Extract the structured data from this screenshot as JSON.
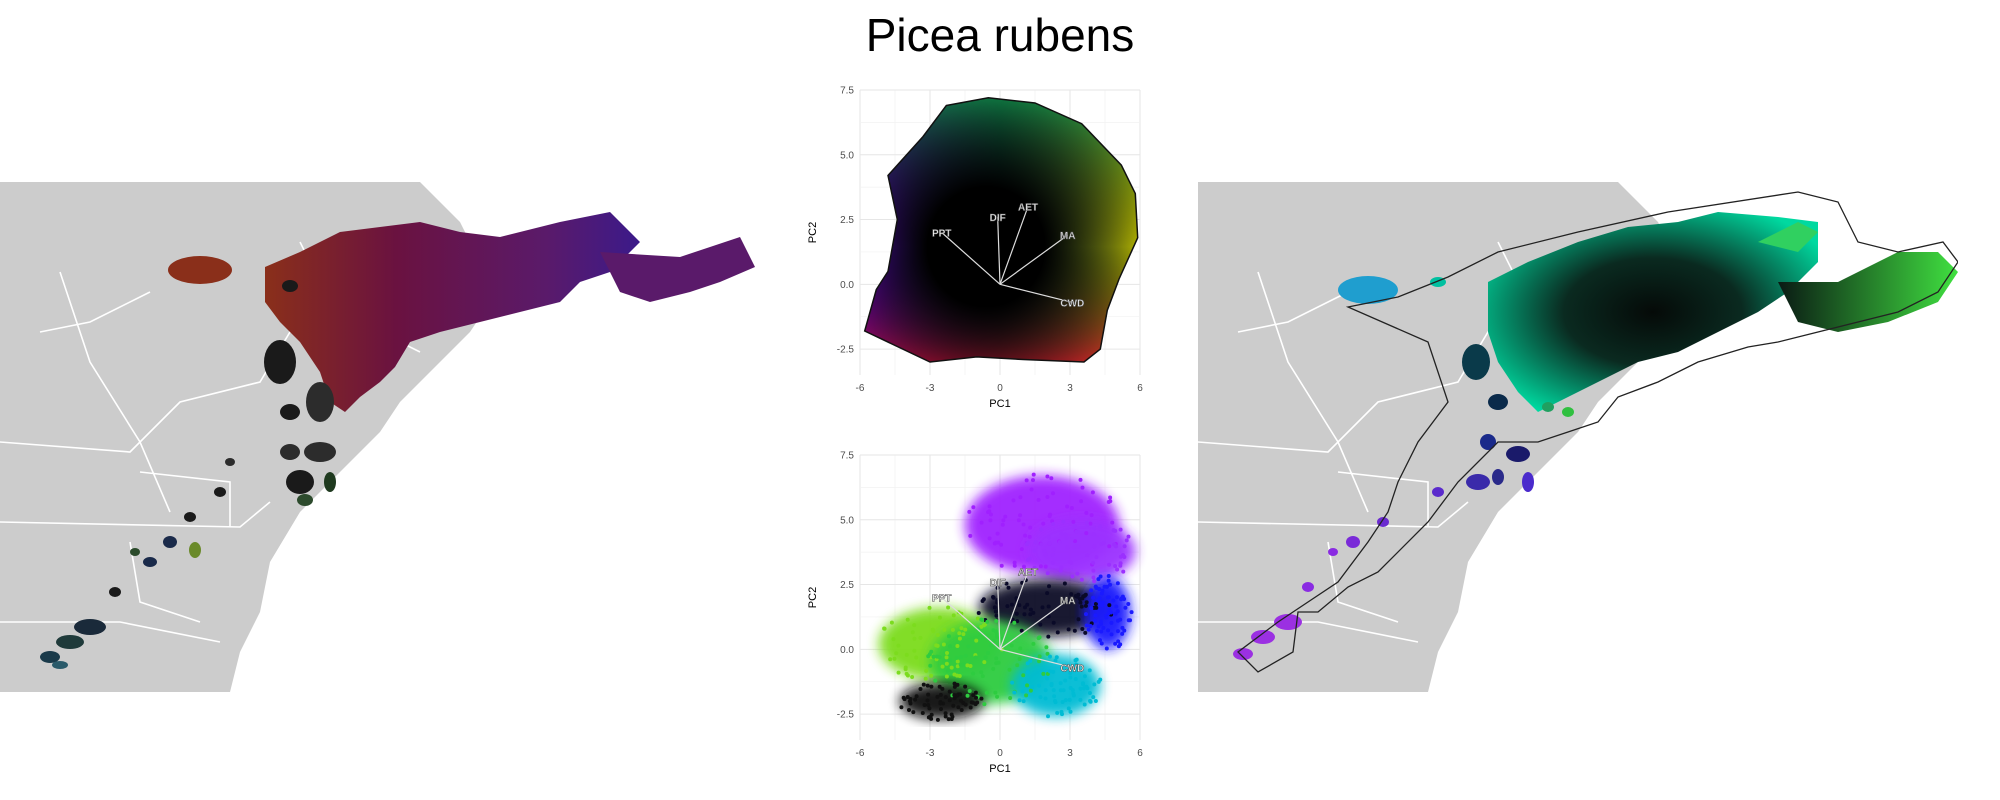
{
  "figure": {
    "title": "Picea rubens"
  },
  "chart_data": [
    {
      "type": "scatter",
      "id": "pca-top",
      "title": "",
      "xlabel": "PC1",
      "ylabel": "PC2",
      "xlim": [
        -6,
        6
      ],
      "ylim": [
        -3.5,
        7.5
      ],
      "xticks": [
        -6,
        -3,
        0,
        3,
        6
      ],
      "yticks": [
        -2.5,
        0.0,
        2.5,
        5.0,
        7.5
      ],
      "xtick_labels": [
        "-6",
        "-3",
        "0",
        "3",
        "6"
      ],
      "ytick_labels": [
        "-2.5",
        "0.0",
        "2.5",
        "5.0",
        "7.5"
      ],
      "grid": true,
      "coloring": "RGB gradient across PC space with black center",
      "hull": [
        [
          -2.3,
          6.9
        ],
        [
          -0.5,
          7.2
        ],
        [
          1.5,
          7.0
        ],
        [
          3.5,
          6.2
        ],
        [
          5.2,
          4.6
        ],
        [
          5.8,
          3.5
        ],
        [
          5.9,
          1.8
        ],
        [
          5.1,
          0.2
        ],
        [
          4.6,
          -1.0
        ],
        [
          4.3,
          -2.5
        ],
        [
          3.6,
          -3.0
        ],
        [
          1.0,
          -2.9
        ],
        [
          -1.0,
          -2.8
        ],
        [
          -3.0,
          -3.0
        ],
        [
          -5.8,
          -1.8
        ],
        [
          -5.3,
          -0.2
        ],
        [
          -4.8,
          0.5
        ],
        [
          -4.4,
          2.5
        ],
        [
          -4.8,
          4.2
        ],
        [
          -3.3,
          5.7
        ]
      ],
      "vectors": [
        {
          "label": "PPT",
          "x": -2.5,
          "y": 2.0
        },
        {
          "label": "DIF",
          "x": -0.1,
          "y": 2.6
        },
        {
          "label": "AET",
          "x": 1.2,
          "y": 3.0
        },
        {
          "label": "MA",
          "x": 2.9,
          "y": 1.9
        },
        {
          "label": "CWD",
          "x": 3.1,
          "y": -0.7
        }
      ]
    },
    {
      "type": "scatter",
      "id": "pca-bottom",
      "title": "",
      "xlabel": "PC1",
      "ylabel": "PC2",
      "xlim": [
        -6,
        6
      ],
      "ylim": [
        -3.5,
        7.5
      ],
      "xticks": [
        -6,
        -3,
        0,
        3,
        6
      ],
      "yticks": [
        -2.5,
        0.0,
        2.5,
        5.0,
        7.5
      ],
      "xtick_labels": [
        "-6",
        "-3",
        "0",
        "3",
        "6"
      ],
      "ytick_labels": [
        "-2.5",
        "0.0",
        "2.5",
        "5.0",
        "7.5"
      ],
      "grid": true,
      "clusters": [
        {
          "color": "#a020ff",
          "cx": 1.8,
          "cy": 4.8,
          "rx": 3.3,
          "ry": 1.9
        },
        {
          "color": "#9b30ff",
          "cx": 3.5,
          "cy": 3.8,
          "rx": 2.3,
          "ry": 1.2
        },
        {
          "color": "#0a0a28",
          "cx": 2.0,
          "cy": 1.6,
          "rx": 2.9,
          "ry": 1.1
        },
        {
          "color": "#1a1aff",
          "cx": 4.6,
          "cy": 1.4,
          "rx": 1.0,
          "ry": 1.4
        },
        {
          "color": "#7cdc1e",
          "cx": -2.6,
          "cy": 0.2,
          "rx": 2.6,
          "ry": 1.4
        },
        {
          "color": "#2ecc40",
          "cx": -0.4,
          "cy": -0.5,
          "rx": 2.6,
          "ry": 1.6
        },
        {
          "color": "#00bcd4",
          "cx": 2.4,
          "cy": -1.4,
          "rx": 1.9,
          "ry": 1.2
        },
        {
          "color": "#111111",
          "cx": -2.5,
          "cy": -2.0,
          "rx": 1.8,
          "ry": 0.7
        }
      ],
      "vectors": [
        {
          "label": "PPT",
          "x": -2.5,
          "y": 2.0
        },
        {
          "label": "DIF",
          "x": -0.1,
          "y": 2.6
        },
        {
          "label": "AET",
          "x": 1.2,
          "y": 3.0
        },
        {
          "label": "MA",
          "x": 2.9,
          "y": 1.9
        },
        {
          "label": "CWD",
          "x": 3.1,
          "y": -0.7
        }
      ]
    }
  ],
  "maps": {
    "left": {
      "land_color": "#cccccc",
      "border_color": "#ffffff",
      "range_palette": [
        "#6a1240",
        "#4b1a7a",
        "#2c2c2c",
        "#8a2f1a"
      ]
    },
    "right": {
      "land_color": "#cccccc",
      "border_color": "#ffffff",
      "range_palette": [
        "#00d9a0",
        "#0a1a14",
        "#40e040",
        "#8a2be2",
        "#1f9ecf"
      ]
    }
  }
}
